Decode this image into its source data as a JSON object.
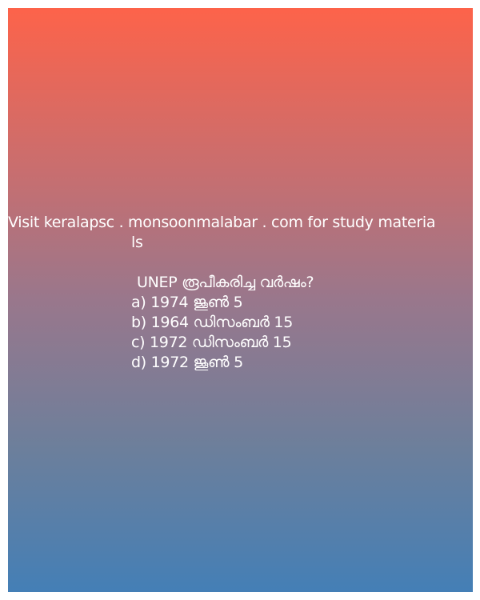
{
  "promo": {
    "line1": "Visit keralapsc . monsoonmalabar . com for study materia",
    "line2": "ls"
  },
  "quiz": {
    "question": "UNEP രൂപീകരിച്ച വർഷം?",
    "options": [
      "a) 1974 ജൂൺ 5",
      "b) 1964 ഡിസംബർ 15",
      "c) 1972 ഡിസംബർ 15",
      "d) 1972 ജൂൺ 5"
    ]
  },
  "colors": {
    "gradient_top": "#fd634a",
    "gradient_bottom": "#447fb6",
    "text": "#ffffff"
  }
}
